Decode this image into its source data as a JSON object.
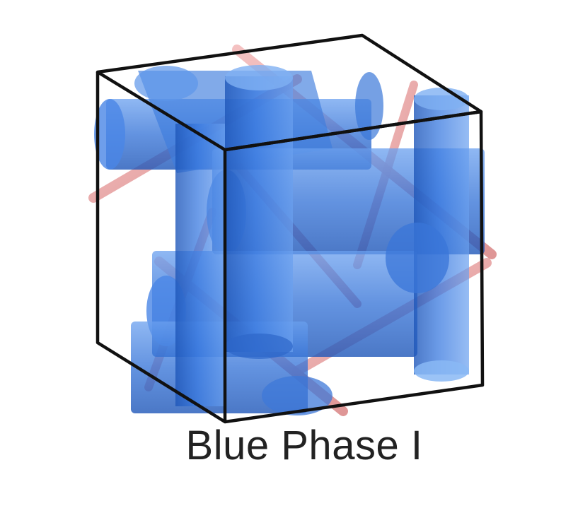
{
  "diagram": {
    "caption": "Blue Phase I",
    "bottom_partial_caption": "",
    "colors": {
      "background": "#ffffff",
      "cube_edges": "#111111",
      "cylinder_fill": "#2f6fd6",
      "cylinder_light": "#6aa0ef",
      "disclination_rod": "#e89a9a",
      "caption_text": "#222222"
    }
  }
}
